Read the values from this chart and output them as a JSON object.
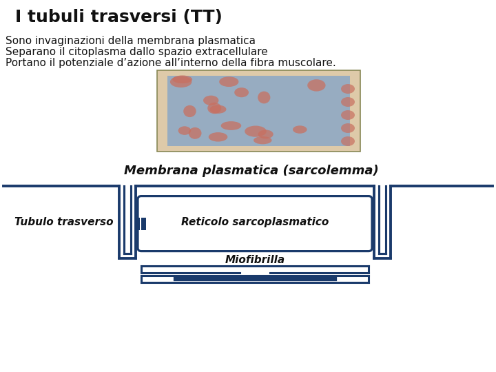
{
  "title": "I tubuli trasversi (TT)",
  "bullet1": "Sono invaginazioni della membrana plasmatica",
  "bullet2": "Separano il citoplasma dallo spazio extracellulare",
  "bullet3": "Portano il potenziale d’azione all’interno della fibra muscolare.",
  "caption_image": "Membrana plasmatica (sarcolemma)",
  "label_tubulo": "Tubulo trasverso",
  "label_reticolo": "Reticolo sarcoplasmatico",
  "label_miofibrilla": "Miofibrilla",
  "bg_color": "#ffffff",
  "line_color": "#1a3a6b",
  "line_width": 2.5,
  "title_fontsize": 18,
  "body_fontsize": 11,
  "diagram_label_fontsize": 11,
  "caption_fontsize": 13
}
